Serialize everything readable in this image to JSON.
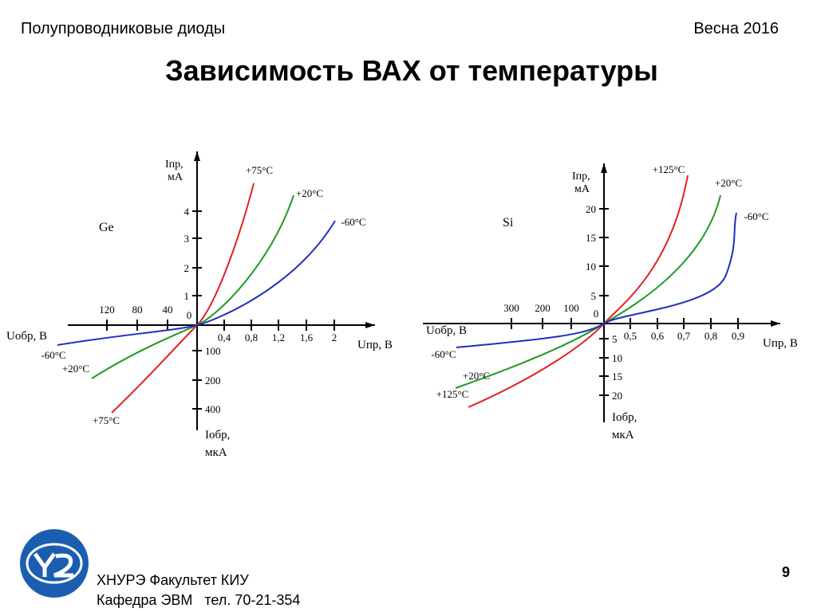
{
  "header": {
    "subject": "Полупроводниковые диоды",
    "term": "Весна 2016"
  },
  "title": "Зависимость ВАХ от температуры",
  "graphs": [
    {
      "material": "Ge",
      "forward_current": "Iпр,",
      "forward_current_unit": "мА",
      "forward_voltage": "Uпр, В",
      "reverse_voltage": "Uобр, В",
      "reverse_current": "Iобр,",
      "reverse_current_unit": "мкА",
      "origin": "0",
      "forward_voltage_ticks": [
        "0,4",
        "0,8",
        "1,2",
        "1,6",
        "2"
      ],
      "forward_current_ticks": [
        "1",
        "2",
        "3",
        "4"
      ],
      "reverse_voltage_ticks": [
        "40",
        "80",
        "120"
      ],
      "reverse_current_ticks": [
        "100",
        "200",
        "400"
      ],
      "curves": [
        "+75°C",
        "+20°C",
        "-60°C"
      ]
    },
    {
      "material": "Si",
      "forward_current": "Iпр,",
      "forward_current_unit": "мА",
      "forward_voltage": "Uпр, В",
      "reverse_voltage": "Uобр, В",
      "reverse_current": "Iобр,",
      "reverse_current_unit": "мкА",
      "origin": "0",
      "forward_voltage_ticks": [
        "0,5",
        "0,6",
        "0,7",
        "0,8",
        "0,9"
      ],
      "forward_current_ticks": [
        "5",
        "10",
        "15",
        "20"
      ],
      "reverse_voltage_ticks": [
        "100",
        "200",
        "300"
      ],
      "reverse_current_ticks": [
        "5",
        "10",
        "15",
        "20"
      ],
      "curves": [
        "+125°C",
        "+20°C",
        "-60°C"
      ]
    }
  ],
  "footer": {
    "university": "ХНУРЭ Факультет КИУ",
    "department": "Кафедра ЭВМ   тел. 70-21-354",
    "page": "9"
  }
}
